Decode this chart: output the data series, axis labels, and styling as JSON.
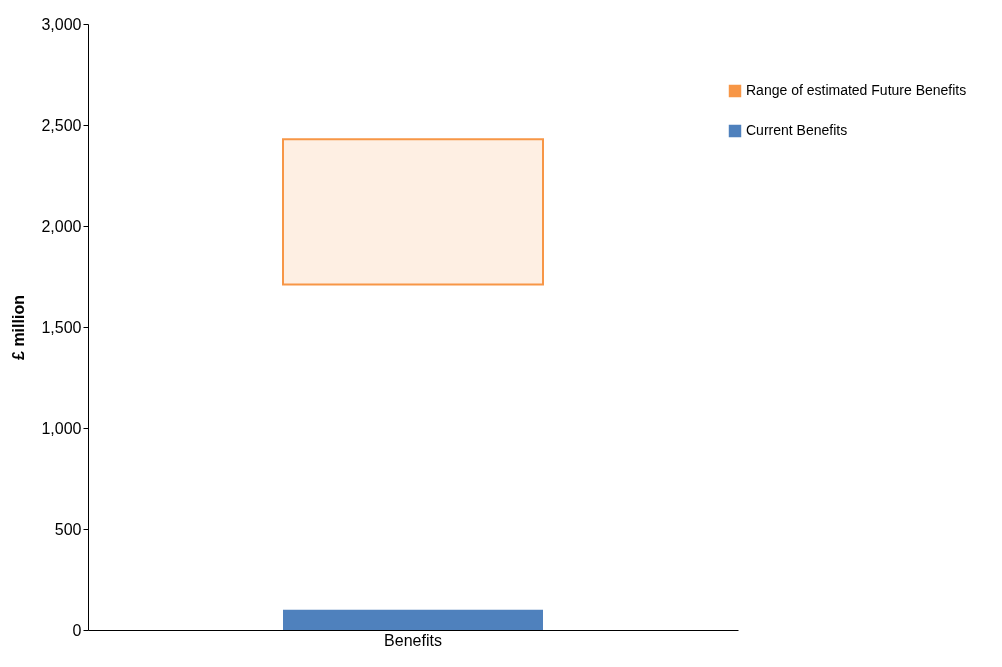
{
  "chart_data": {
    "type": "bar",
    "categories": [
      "Benefits"
    ],
    "ylabel": "£ million",
    "ylim": [
      0,
      3000
    ],
    "yticks": [
      0,
      500,
      {
        "value": 1000,
        "label": "1,000"
      },
      {
        "value": 1500,
        "label": "1,500"
      },
      {
        "value": 2000,
        "label": "2,000"
      },
      {
        "value": 2500,
        "label": "2,500"
      },
      {
        "value": 3000,
        "label": "3,000"
      }
    ],
    "grid": false,
    "legend": "top right",
    "series": [
      {
        "name": "Current Benefits",
        "color": "#4f81bd",
        "values": [
          100
        ]
      },
      {
        "name": "Range of estimated Future Benefits",
        "color": "#f79646",
        "values": [
          720
        ],
        "base": [
          1710
        ]
      }
    ]
  }
}
